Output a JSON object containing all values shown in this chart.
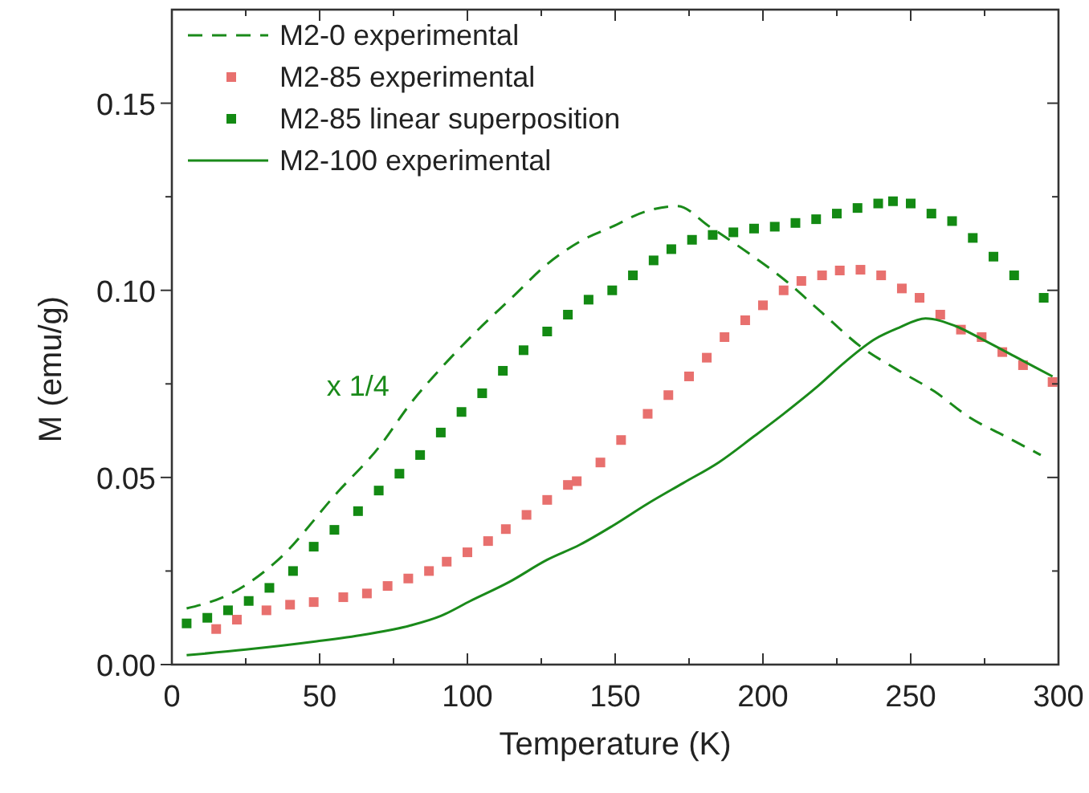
{
  "chart_data": {
    "type": "line",
    "xlabel": "Temperature (K)",
    "ylabel": "M (emu/g)",
    "xlim": [
      0,
      300
    ],
    "ylim": [
      0,
      0.175
    ],
    "xticks": [
      0,
      50,
      100,
      150,
      200,
      250,
      300
    ],
    "yticks": [
      {
        "value": 0,
        "label": "0.00"
      },
      {
        "value": 0.05,
        "label": "0.05"
      },
      {
        "value": 0.1,
        "label": "0.10"
      },
      {
        "value": 0.15,
        "label": "0.15"
      }
    ],
    "grid": false,
    "legend": "top left",
    "annotations": [
      "x 1/4"
    ],
    "series": [
      {
        "name": "M2-0 experimental",
        "line_style": "dashed",
        "marker": "none",
        "color": "#1a8a1a",
        "x": [
          5,
          20,
          36,
          56,
          70,
          81,
          92,
          103,
          115,
          127,
          138,
          149,
          160,
          171,
          182,
          195,
          207,
          220,
          233,
          245,
          258,
          270,
          282,
          294
        ],
        "values": [
          0.015,
          0.019,
          0.028,
          0.046,
          0.058,
          0.07,
          0.08,
          0.089,
          0.098,
          0.107,
          0.113,
          0.117,
          0.121,
          0.1225,
          0.117,
          0.11,
          0.103,
          0.094,
          0.085,
          0.079,
          0.073,
          0.066,
          0.061,
          0.056
        ]
      },
      {
        "name": "M2-85 experimental",
        "type": "scatter",
        "marker": "square",
        "color": "#e8706e",
        "x": [
          15,
          22,
          32,
          40,
          48,
          58,
          66,
          73,
          80,
          87,
          93,
          100,
          107,
          113,
          120,
          127,
          134,
          137,
          145,
          152,
          161,
          168,
          175,
          181,
          187,
          194,
          200,
          207,
          213,
          220,
          226,
          233,
          240,
          247,
          253,
          260,
          267,
          274,
          281,
          288,
          298
        ],
        "values": [
          0.0095,
          0.012,
          0.0145,
          0.016,
          0.0167,
          0.018,
          0.019,
          0.021,
          0.023,
          0.025,
          0.0275,
          0.03,
          0.033,
          0.0362,
          0.04,
          0.044,
          0.048,
          0.049,
          0.054,
          0.06,
          0.067,
          0.072,
          0.077,
          0.082,
          0.0875,
          0.092,
          0.096,
          0.1,
          0.1025,
          0.104,
          0.1053,
          0.1055,
          0.104,
          0.1005,
          0.098,
          0.0935,
          0.0895,
          0.0875,
          0.0835,
          0.08,
          0.0755
        ]
      },
      {
        "name": "M2-85 linear superposition",
        "type": "scatter",
        "marker": "square",
        "color": "#138a13",
        "x": [
          5,
          12,
          19,
          26,
          33,
          41,
          48,
          55,
          63,
          70,
          77,
          84,
          91,
          98,
          105,
          112,
          119,
          127,
          134,
          141,
          149,
          156,
          163,
          169,
          176,
          183,
          190,
          197,
          204,
          211,
          218,
          225,
          232,
          239,
          244,
          250,
          257,
          264,
          271,
          278,
          285,
          295
        ],
        "values": [
          0.011,
          0.0125,
          0.0145,
          0.017,
          0.0205,
          0.025,
          0.0315,
          0.036,
          0.041,
          0.0465,
          0.051,
          0.056,
          0.062,
          0.0675,
          0.0725,
          0.0785,
          0.084,
          0.089,
          0.0935,
          0.0975,
          0.1,
          0.104,
          0.108,
          0.111,
          0.1135,
          0.1148,
          0.1155,
          0.1165,
          0.117,
          0.118,
          0.119,
          0.1205,
          0.122,
          0.1232,
          0.1238,
          0.1232,
          0.1205,
          0.1185,
          0.114,
          0.109,
          0.104,
          0.098
        ]
      },
      {
        "name": "M2-100 experimental",
        "line_style": "solid",
        "marker": "none",
        "color": "#1a8a1a",
        "x": [
          5,
          25,
          49,
          65,
          81,
          91,
          101,
          114,
          127,
          138,
          149,
          161,
          173,
          185,
          197,
          207,
          218,
          228,
          238,
          246,
          255,
          265,
          274,
          286,
          298
        ],
        "values": [
          0.0025,
          0.004,
          0.0062,
          0.008,
          0.0105,
          0.013,
          0.017,
          0.022,
          0.028,
          0.032,
          0.037,
          0.043,
          0.0485,
          0.054,
          0.061,
          0.067,
          0.074,
          0.081,
          0.087,
          0.09,
          0.0925,
          0.0905,
          0.087,
          0.082,
          0.077
        ]
      }
    ]
  }
}
